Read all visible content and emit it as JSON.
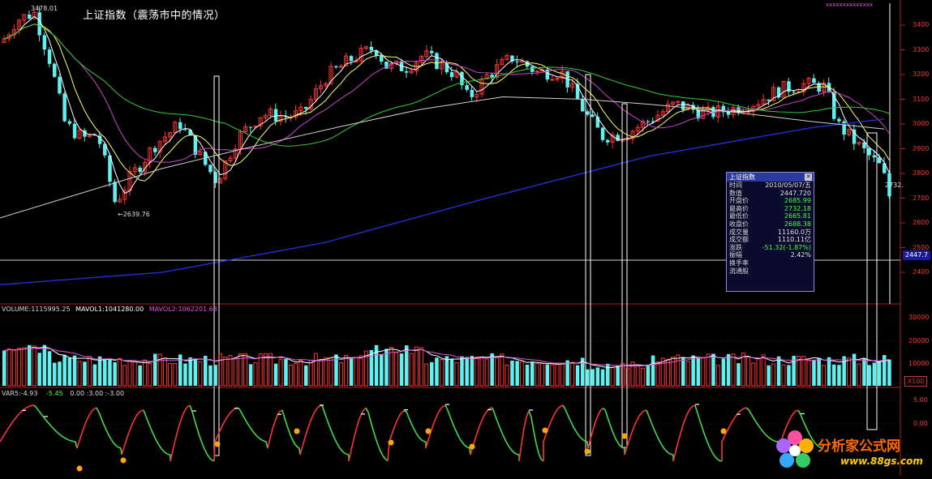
{
  "chart_title": "上证指数（震荡市中的情况）",
  "colors": {
    "background": "#000000",
    "up": "#ff3333",
    "down": "#5ff0f0",
    "ma5": "#ffffff",
    "ma10": "#ffff66",
    "ma20": "#cc44cc",
    "ma60": "#33cc33",
    "ma250": "#2233dd",
    "axis": "#aa2222",
    "box": "#ffffff"
  },
  "main_panel": {
    "high_label": "3478.01",
    "low_label": "←2639.76",
    "last_label": "2732.",
    "crosshair_label": "2447.7",
    "markers": "xxxxxxxxxxxxxx"
  },
  "info_box": {
    "title": "上证指数",
    "rows": [
      {
        "k": "时间",
        "v": "2010/05/07/五",
        "c": ""
      },
      {
        "k": "数值",
        "v": "2447.720",
        "c": ""
      },
      {
        "k": "开盘价",
        "v": "2685.99",
        "c": "dn"
      },
      {
        "k": "最高价",
        "v": "2732.18",
        "c": "dn"
      },
      {
        "k": "最低价",
        "v": "2665.81",
        "c": "dn"
      },
      {
        "k": "收盘价",
        "v": "2688.38",
        "c": "dn"
      },
      {
        "k": "成交量",
        "v": "11160.0万",
        "c": ""
      },
      {
        "k": "成交额",
        "v": "1110.11亿",
        "c": ""
      },
      {
        "k": "涨跌",
        "v": "-51.32(-1.87%)",
        "c": "dn"
      },
      {
        "k": "振幅",
        "v": "2.42%",
        "c": ""
      },
      {
        "k": "换手率",
        "v": "",
        "c": ""
      },
      {
        "k": "流通股",
        "v": "",
        "c": ""
      }
    ]
  },
  "volume_panel": {
    "label_volume": "VOLUME:1115995.25",
    "label_mavol1": "MAVOL1:1041280.00",
    "label_mavol2": "MAVOL2:1062201.63",
    "unit_label": "X100"
  },
  "var_panel": {
    "label_var": "VAR5:-4.93",
    "label_2": "-5.45",
    "label_3": "0.00",
    "label_4": "3.00",
    "label_5": "-3.00"
  },
  "price_axis": [
    "3400",
    "3300",
    "3200",
    "3100",
    "3000",
    "2900",
    "2800",
    "2700",
    "2600",
    "2500",
    "2400"
  ],
  "volume_axis": [
    "30000",
    "20000",
    "10000"
  ],
  "var_axis": [
    "5.00",
    "0.00"
  ],
  "logo": {
    "main": "分析家公式网",
    "url": "www.88gs.com"
  }
}
